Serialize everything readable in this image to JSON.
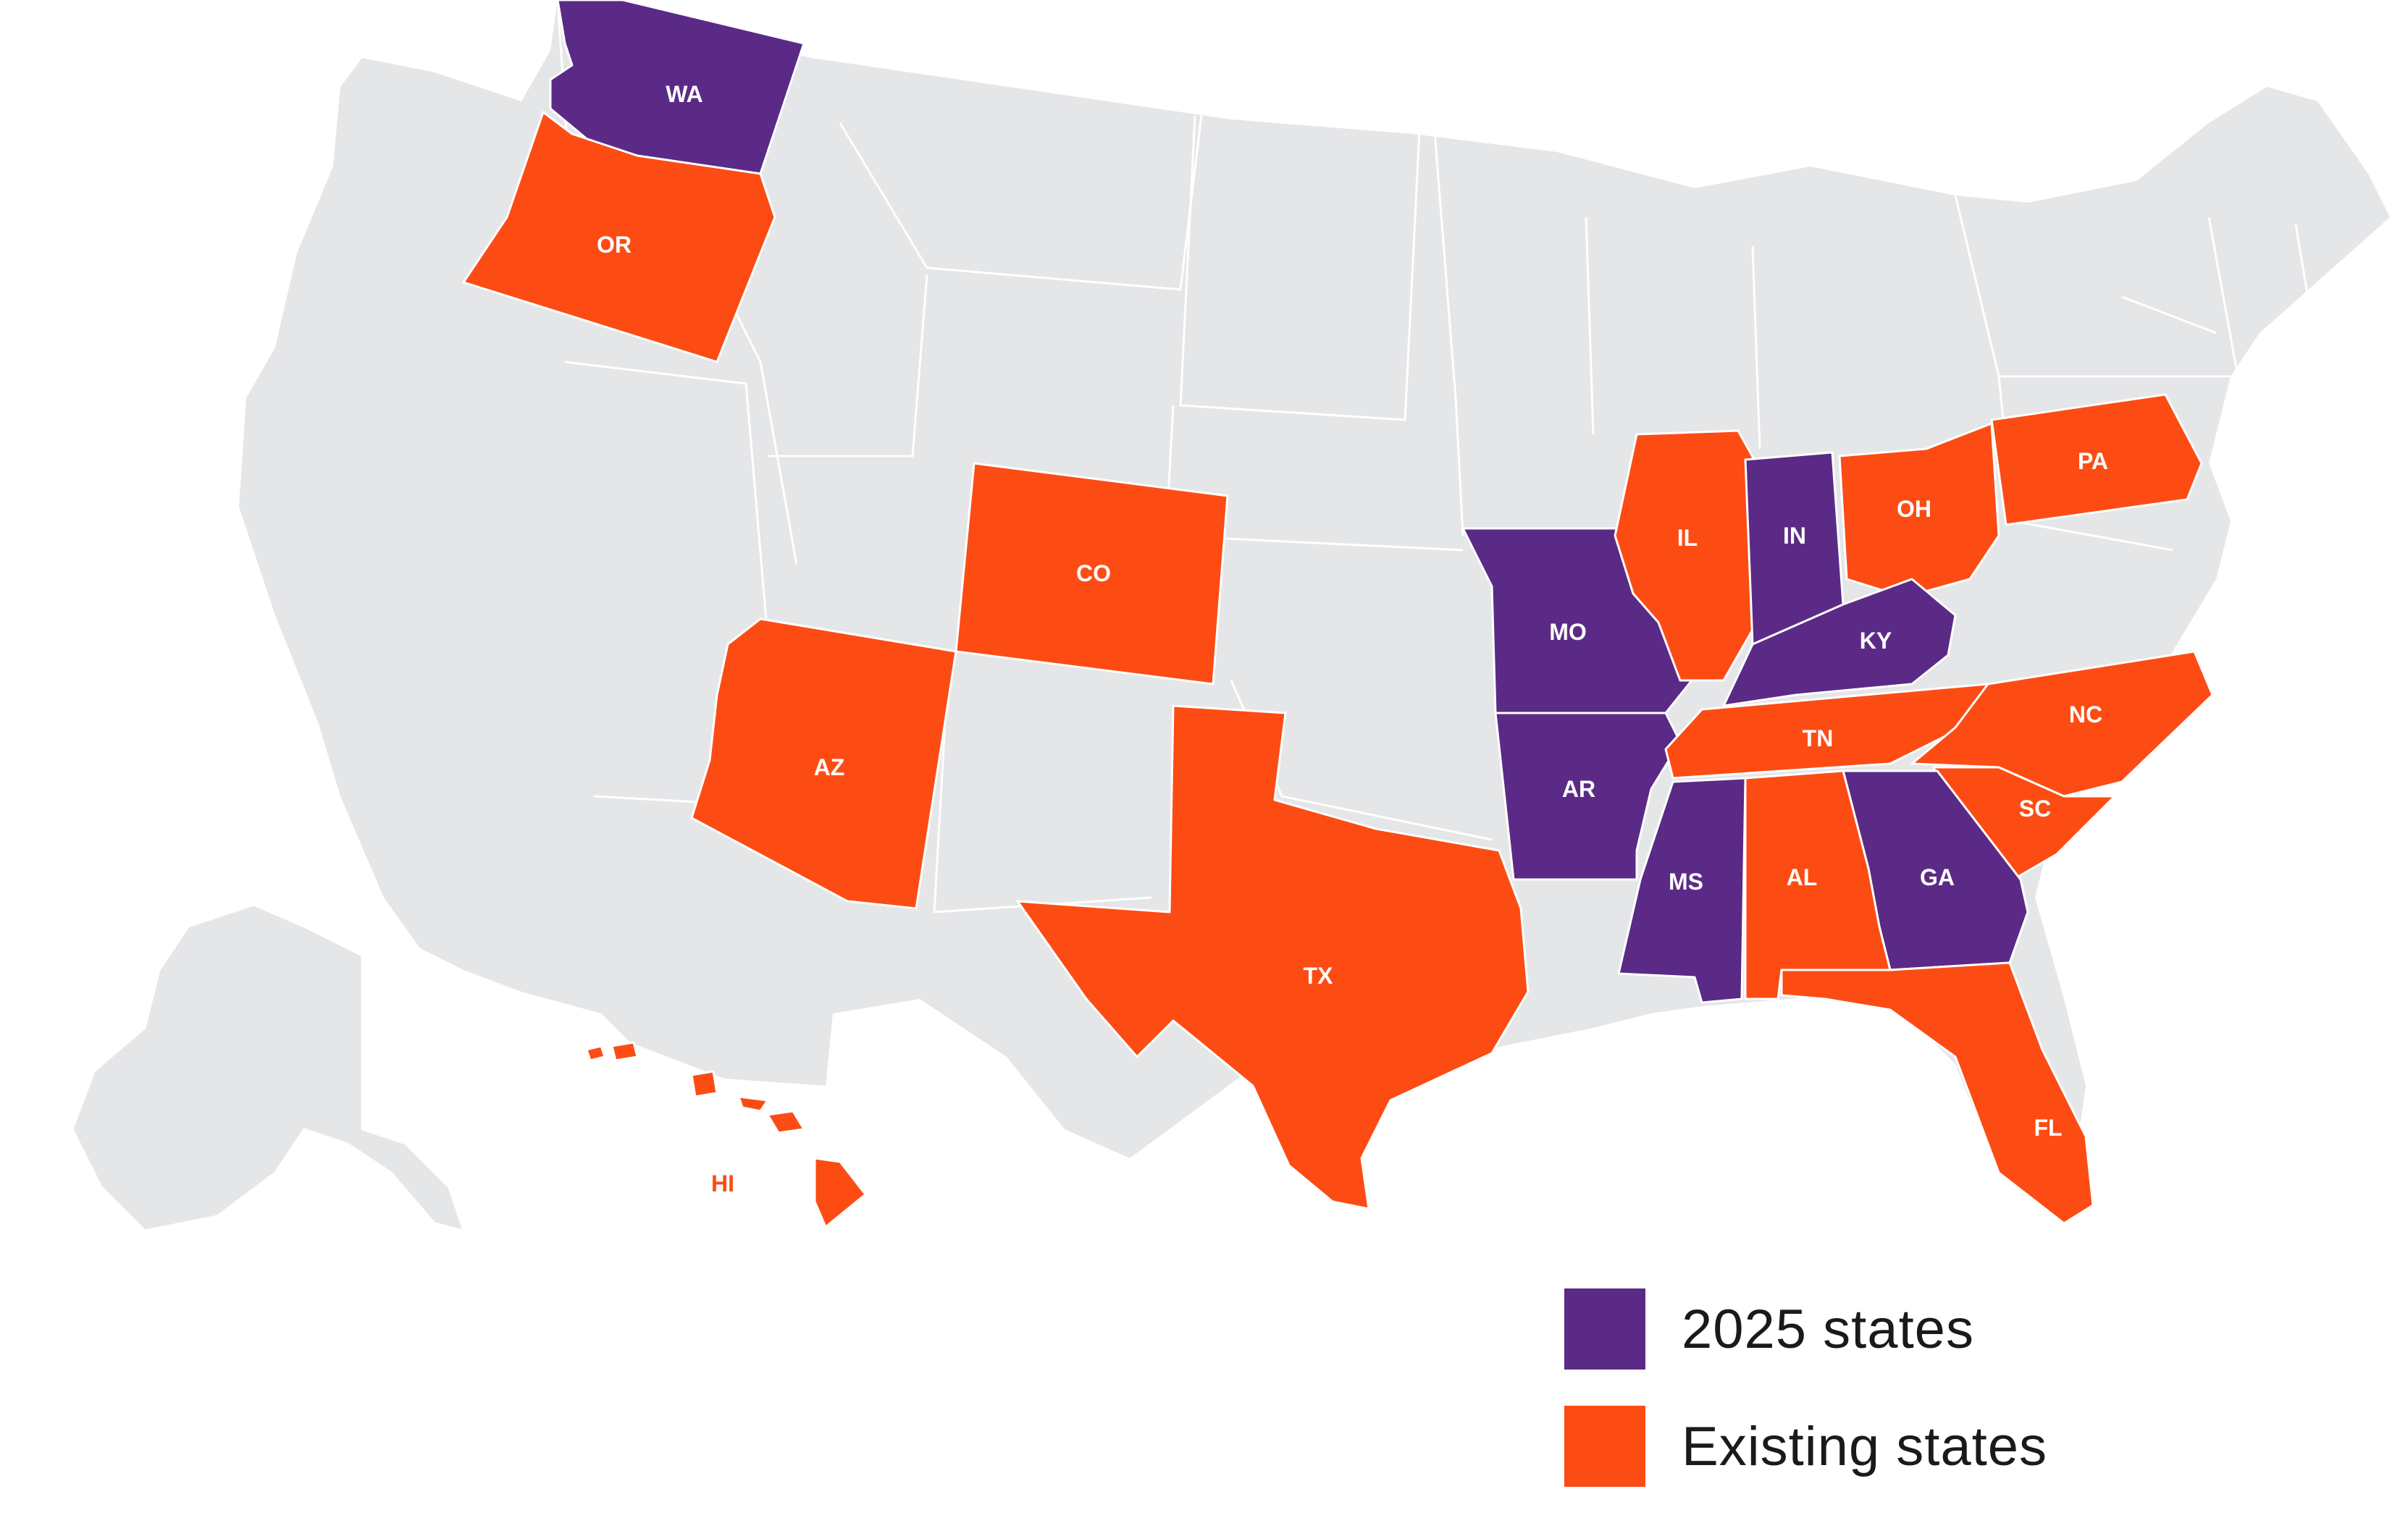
{
  "colors": {
    "base": "#e5e6e8",
    "group_2025": "#5b2a86",
    "group_existing": "#fc4c14",
    "label_on_color": "#ffffff",
    "label_on_base": "#ffffff"
  },
  "states": [
    {
      "code": "WA",
      "group": "2025"
    },
    {
      "code": "OR",
      "group": "existing"
    },
    {
      "code": "CO",
      "group": "existing"
    },
    {
      "code": "AZ",
      "group": "existing"
    },
    {
      "code": "TX",
      "group": "existing"
    },
    {
      "code": "MO",
      "group": "2025"
    },
    {
      "code": "AR",
      "group": "2025"
    },
    {
      "code": "IL",
      "group": "existing"
    },
    {
      "code": "IN",
      "group": "2025"
    },
    {
      "code": "OH",
      "group": "existing"
    },
    {
      "code": "PA",
      "group": "existing"
    },
    {
      "code": "KY",
      "group": "2025"
    },
    {
      "code": "TN",
      "group": "existing"
    },
    {
      "code": "NC",
      "group": "existing"
    },
    {
      "code": "SC",
      "group": "existing"
    },
    {
      "code": "GA",
      "group": "2025"
    },
    {
      "code": "MS",
      "group": "2025"
    },
    {
      "code": "AL",
      "group": "existing"
    },
    {
      "code": "FL",
      "group": "existing"
    },
    {
      "code": "HI",
      "group": "existing"
    },
    {
      "code": "AK",
      "group": "none"
    }
  ],
  "legend": {
    "items": [
      {
        "label": "2025 states",
        "color": "#5b2a86"
      },
      {
        "label": "Existing states",
        "color": "#fc4c14"
      }
    ]
  }
}
